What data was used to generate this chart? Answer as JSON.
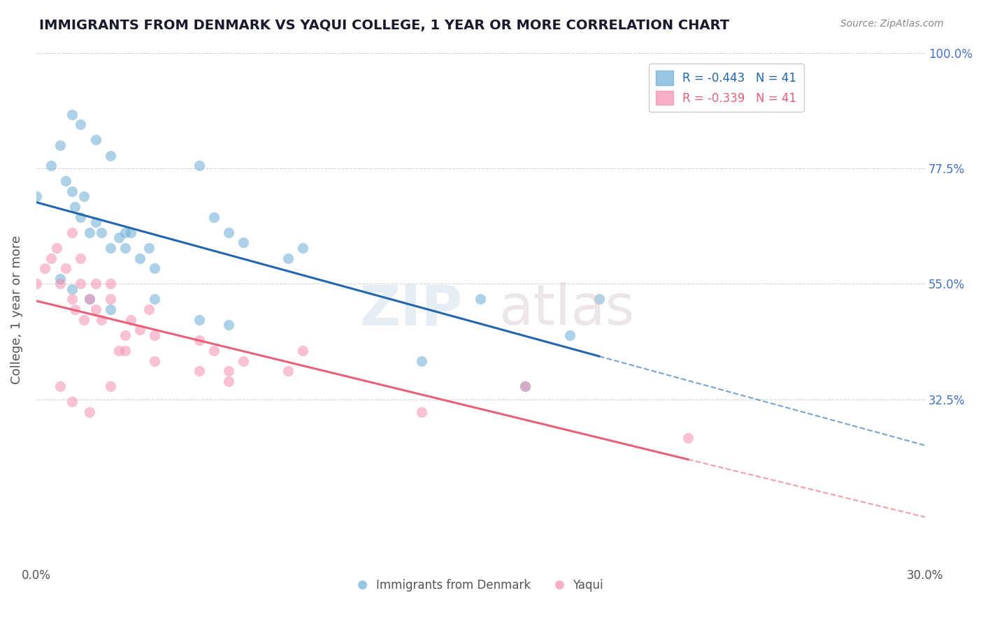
{
  "title": "IMMIGRANTS FROM DENMARK VS YAQUI COLLEGE, 1 YEAR OR MORE CORRELATION CHART",
  "source_text": "Source: ZipAtlas.com",
  "ylabel": "College, 1 year or more",
  "xlabel": "",
  "xlim": [
    0.0,
    0.3
  ],
  "ylim": [
    0.0,
    1.0
  ],
  "xticklabels": [
    "0.0%",
    "30.0%"
  ],
  "yticklabels_right": [
    "100.0%",
    "77.5%",
    "55.0%",
    "32.5%"
  ],
  "yticklabels_right_vals": [
    1.0,
    0.775,
    0.55,
    0.325
  ],
  "legend_items": [
    {
      "label": "R = -0.443   N = 41",
      "color": "#a8c8f0"
    },
    {
      "label": "R = -0.339   N = 41",
      "color": "#f0a8c0"
    }
  ],
  "legend_footer": [
    "Immigrants from Denmark",
    "Yaqui"
  ],
  "legend_footer_colors": [
    "#a8c8f0",
    "#f0b8c8"
  ],
  "watermark_zip": "ZIP",
  "watermark_atlas": "atlas",
  "blue_scatter_x": [
    0.0,
    0.005,
    0.008,
    0.01,
    0.012,
    0.013,
    0.015,
    0.016,
    0.018,
    0.02,
    0.022,
    0.025,
    0.028,
    0.03,
    0.032,
    0.035,
    0.038,
    0.04,
    0.012,
    0.015,
    0.02,
    0.025,
    0.055,
    0.06,
    0.065,
    0.07,
    0.085,
    0.09,
    0.15,
    0.18,
    0.008,
    0.012,
    0.018,
    0.025,
    0.03,
    0.04,
    0.055,
    0.065,
    0.13,
    0.165,
    0.19
  ],
  "blue_scatter_y": [
    0.72,
    0.78,
    0.82,
    0.75,
    0.73,
    0.7,
    0.68,
    0.72,
    0.65,
    0.67,
    0.65,
    0.62,
    0.64,
    0.62,
    0.65,
    0.6,
    0.62,
    0.58,
    0.88,
    0.86,
    0.83,
    0.8,
    0.78,
    0.68,
    0.65,
    0.63,
    0.6,
    0.62,
    0.52,
    0.45,
    0.56,
    0.54,
    0.52,
    0.5,
    0.65,
    0.52,
    0.48,
    0.47,
    0.4,
    0.35,
    0.52
  ],
  "pink_scatter_x": [
    0.0,
    0.003,
    0.005,
    0.007,
    0.008,
    0.01,
    0.012,
    0.013,
    0.015,
    0.016,
    0.018,
    0.02,
    0.022,
    0.025,
    0.028,
    0.03,
    0.032,
    0.035,
    0.038,
    0.04,
    0.012,
    0.015,
    0.02,
    0.025,
    0.055,
    0.06,
    0.065,
    0.07,
    0.085,
    0.09,
    0.008,
    0.012,
    0.018,
    0.025,
    0.03,
    0.04,
    0.055,
    0.065,
    0.13,
    0.165,
    0.22
  ],
  "pink_scatter_y": [
    0.55,
    0.58,
    0.6,
    0.62,
    0.55,
    0.58,
    0.52,
    0.5,
    0.55,
    0.48,
    0.52,
    0.5,
    0.48,
    0.55,
    0.42,
    0.45,
    0.48,
    0.46,
    0.5,
    0.45,
    0.65,
    0.6,
    0.55,
    0.52,
    0.44,
    0.42,
    0.38,
    0.4,
    0.38,
    0.42,
    0.35,
    0.32,
    0.3,
    0.35,
    0.42,
    0.4,
    0.38,
    0.36,
    0.3,
    0.35,
    0.25
  ],
  "blue_color": "#6baed6",
  "pink_color": "#f48fb1",
  "blue_line_color": "#2166ac",
  "pink_line_color": "#e8607a",
  "grid_color": "#cccccc",
  "bg_color": "#ffffff",
  "title_color": "#1a1a2e",
  "source_color": "#888888",
  "right_tick_color": "#4472c4"
}
